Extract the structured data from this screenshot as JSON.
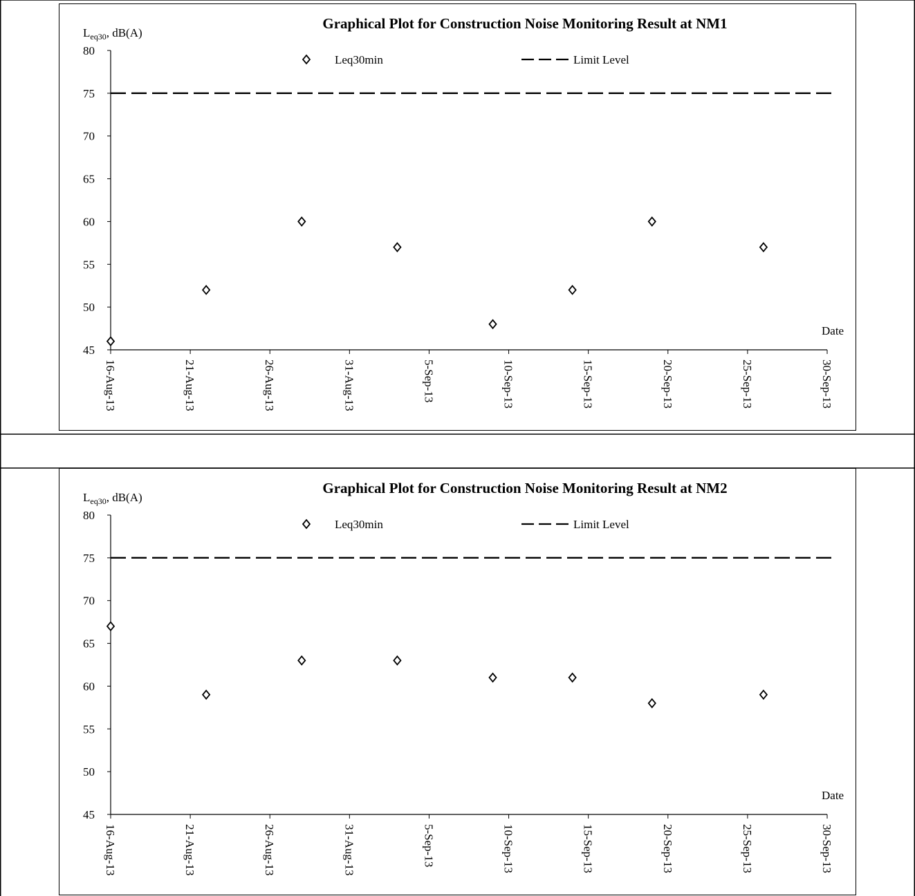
{
  "charts": [
    {
      "title": "Graphical Plot for Construction Noise Monitoring Result at NM1",
      "ylabel_main": "L",
      "ylabel_sub": "eq30",
      "ylabel_rest": ", dB(A)",
      "xlabel": "Date",
      "legend": {
        "points": "Leq30min",
        "limit": "Limit Level"
      }
    },
    {
      "title": "Graphical Plot for Construction Noise Monitoring Result at NM2",
      "ylabel_main": "L",
      "ylabel_sub": "eq30",
      "ylabel_rest": ", dB(A)",
      "xlabel": "Date",
      "legend": {
        "points": "Leq30min",
        "limit": "Limit Level"
      }
    }
  ],
  "chart_data": [
    {
      "type": "scatter",
      "title": "Graphical Plot for Construction Noise Monitoring Result at NM1",
      "ylabel": "Leq30, dB(A)",
      "xlabel": "Date",
      "ylim": [
        45,
        80
      ],
      "yticks": [
        45,
        50,
        55,
        60,
        65,
        70,
        75,
        80
      ],
      "xlim": [
        "2013-08-16",
        "2013-09-30"
      ],
      "xticks": [
        "16-Aug-13",
        "21-Aug-13",
        "26-Aug-13",
        "31-Aug-13",
        "5-Sep-13",
        "10-Sep-13",
        "15-Sep-13",
        "20-Sep-13",
        "25-Sep-13",
        "30-Sep-13"
      ],
      "grid": false,
      "legend_position": "top",
      "series": [
        {
          "name": "Leq30min",
          "marker": "diamond",
          "x": [
            "2013-08-16",
            "2013-08-22",
            "2013-08-28",
            "2013-09-03",
            "2013-09-09",
            "2013-09-14",
            "2013-09-19",
            "2013-09-26"
          ],
          "y": [
            46,
            52,
            60,
            57,
            48,
            52,
            60,
            57
          ]
        },
        {
          "name": "Limit Level",
          "style": "dashed-line",
          "value": 75
        }
      ]
    },
    {
      "type": "scatter",
      "title": "Graphical Plot for Construction Noise Monitoring Result at NM2",
      "ylabel": "Leq30, dB(A)",
      "xlabel": "Date",
      "ylim": [
        45,
        80
      ],
      "yticks": [
        45,
        50,
        55,
        60,
        65,
        70,
        75,
        80
      ],
      "xlim": [
        "2013-08-16",
        "2013-09-30"
      ],
      "xticks": [
        "16-Aug-13",
        "21-Aug-13",
        "26-Aug-13",
        "31-Aug-13",
        "5-Sep-13",
        "10-Sep-13",
        "15-Sep-13",
        "20-Sep-13",
        "25-Sep-13",
        "30-Sep-13"
      ],
      "grid": false,
      "legend_position": "top",
      "series": [
        {
          "name": "Leq30min",
          "marker": "diamond",
          "x": [
            "2013-08-16",
            "2013-08-22",
            "2013-08-28",
            "2013-09-03",
            "2013-09-09",
            "2013-09-14",
            "2013-09-19",
            "2013-09-26"
          ],
          "y": [
            67,
            59,
            63,
            63,
            61,
            61,
            58,
            59
          ]
        },
        {
          "name": "Limit Level",
          "style": "dashed-line",
          "value": 75
        }
      ]
    }
  ]
}
